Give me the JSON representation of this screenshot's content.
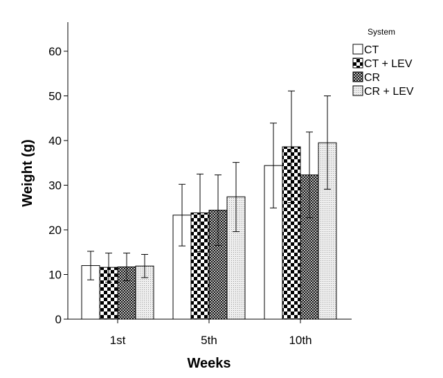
{
  "chart_data": {
    "type": "bar",
    "xlabel": "Weeks",
    "ylabel": "Weight (g)",
    "categories": [
      "1st",
      "5th",
      "10th"
    ],
    "ylim": [
      0,
      65
    ],
    "yticks": [
      0,
      10,
      20,
      30,
      40,
      50,
      60
    ],
    "grid": false,
    "error_bars": true,
    "legend": {
      "title": "System",
      "position": "top-right"
    },
    "series": [
      {
        "name": "CT",
        "pattern": "white",
        "values": [
          12.0,
          23.3,
          34.4
        ],
        "error_low": [
          8.8,
          16.4,
          24.9
        ],
        "error_high": [
          15.2,
          30.2,
          43.9
        ]
      },
      {
        "name": "CT + LEV",
        "pattern": "checker",
        "values": [
          11.6,
          23.8,
          38.6
        ],
        "error_low": [
          8.3,
          15.1,
          26.1
        ],
        "error_high": [
          14.8,
          32.5,
          51.1
        ]
      },
      {
        "name": "CR",
        "pattern": "crosshatch",
        "values": [
          11.7,
          24.4,
          32.3
        ],
        "error_low": [
          8.6,
          16.5,
          22.7
        ],
        "error_high": [
          14.8,
          32.3,
          41.9
        ]
      },
      {
        "name": "CR + LEV",
        "pattern": "dots",
        "values": [
          11.9,
          27.4,
          39.5
        ],
        "error_low": [
          9.3,
          19.6,
          29.1
        ],
        "error_high": [
          14.5,
          35.1,
          50.0
        ]
      }
    ]
  }
}
